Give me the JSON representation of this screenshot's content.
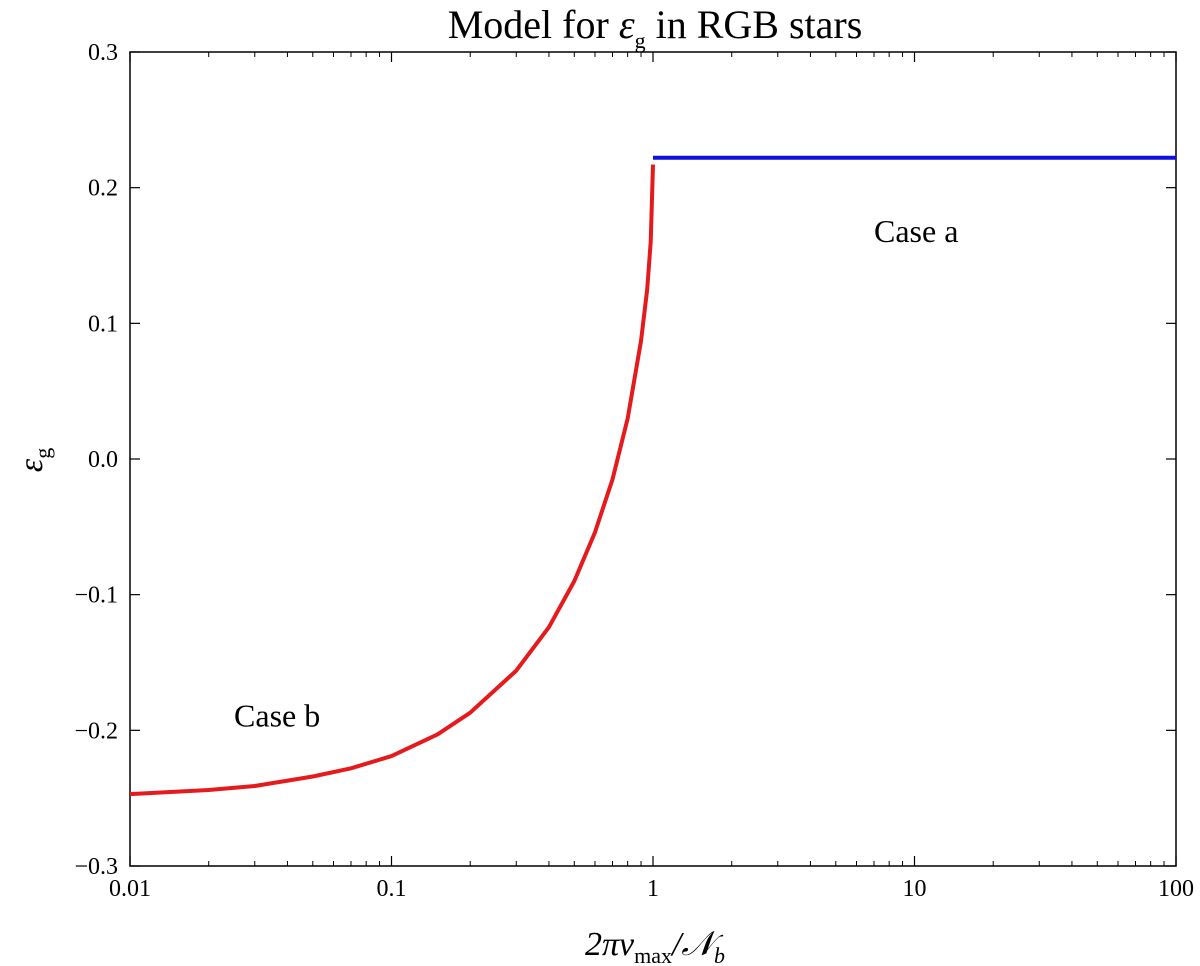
{
  "chart_data": {
    "type": "line",
    "title": {
      "prefix": "Model for ",
      "symbol": "ε",
      "subscript": "g",
      "suffix": " in RGB stars"
    },
    "xlabel": {
      "prefix": "2πν",
      "subscript": "max",
      "suffix": "/𝒩",
      "suffix_subscript": "b"
    },
    "ylabel": {
      "symbol": "ε",
      "subscript": "g"
    },
    "xscale": "log",
    "xlim": [
      0.01,
      100
    ],
    "ylim": [
      -0.3,
      0.3
    ],
    "x_ticks": [
      0.01,
      0.1,
      1,
      10,
      100
    ],
    "x_tick_labels": [
      "0.01",
      "0.1",
      "1",
      "10",
      "100"
    ],
    "y_ticks": [
      0.3,
      0.2,
      0.1,
      0.0,
      -0.1,
      -0.2,
      -0.3
    ],
    "y_tick_labels": [
      "0.3",
      "0.2",
      "0.1",
      "0.0",
      "−0.1",
      "−0.2",
      "−0.3"
    ],
    "grid": false,
    "series": [
      {
        "color": "#e41a1c",
        "x": [
          0.01,
          0.02,
          0.03,
          0.05,
          0.07,
          0.1,
          0.15,
          0.2,
          0.3,
          0.4,
          0.5,
          0.6,
          0.7,
          0.8,
          0.9,
          0.95,
          0.98,
          1.0
        ],
        "y": [
          -0.247,
          -0.244,
          -0.241,
          -0.234,
          -0.228,
          -0.219,
          -0.203,
          -0.187,
          -0.156,
          -0.124,
          -0.09,
          -0.054,
          -0.015,
          0.03,
          0.087,
          0.125,
          0.16,
          0.217
        ]
      },
      {
        "color": "#1010e0",
        "x": [
          1.0,
          100
        ],
        "y": [
          0.222,
          0.222
        ]
      }
    ],
    "annotations": [
      {
        "text": "Case a",
        "x": 7,
        "y": 0.16
      },
      {
        "text": "Case b",
        "x": 0.025,
        "y": -0.197
      }
    ]
  }
}
